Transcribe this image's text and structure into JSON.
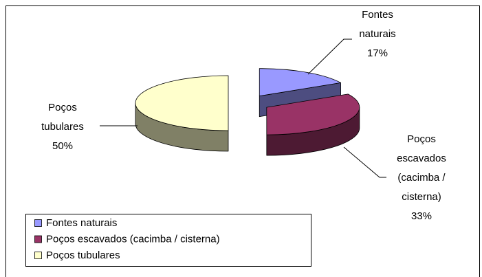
{
  "chart_data": {
    "type": "pie",
    "style": "3d-exploded",
    "categories": [
      "Fontes naturais",
      "Poços escavados (cacimba / cisterna)",
      "Poços tubulares"
    ],
    "values": [
      17,
      33,
      50
    ],
    "value_labels": [
      "17%",
      "33%",
      "50%"
    ],
    "colors": [
      "#9999ff",
      "#993366",
      "#ffffcc"
    ],
    "legend": "bottom-left"
  }
}
